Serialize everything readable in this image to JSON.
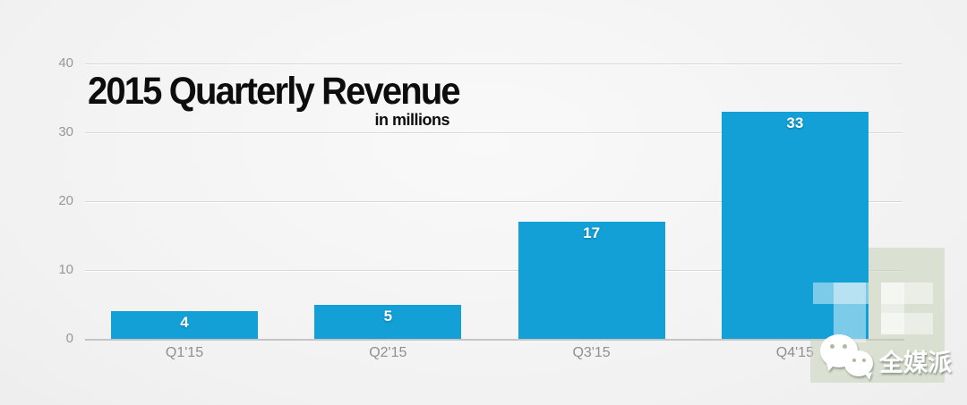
{
  "chart_data": {
    "type": "bar",
    "title": "2015 Quarterly Revenue",
    "subtitle": "in millions",
    "categories": [
      "Q1'15",
      "Q2'15",
      "Q3'15",
      "Q4'15"
    ],
    "values": [
      4,
      5,
      17,
      33
    ],
    "value_labels": [
      "4",
      "5",
      "17",
      "33"
    ],
    "xlabel": "",
    "ylabel": "",
    "ylim": [
      0,
      40
    ],
    "yticks": [
      0,
      10,
      20,
      30,
      40
    ],
    "grid": true,
    "legend": "none",
    "bar_color": "#12a0d6",
    "value_label_color": "#ffffff",
    "axis_label_color": "#8f8f8f"
  },
  "watermarks": {
    "techcrunch_logo": "TC",
    "wechat_account_name": "全媒派",
    "green_overlay_color": "rgba(199,212,184,0.55)"
  }
}
